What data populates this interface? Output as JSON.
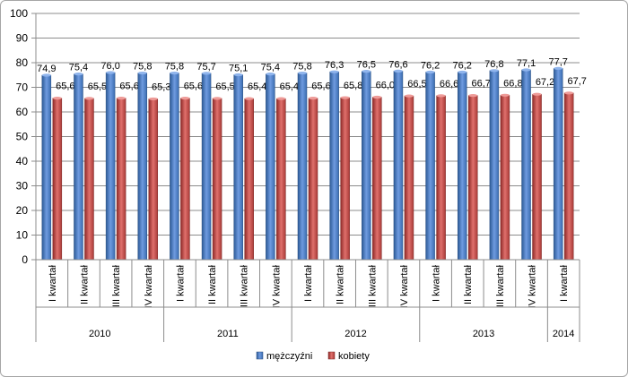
{
  "chart_data": {
    "type": "bar",
    "title": "",
    "xlabel": "",
    "ylabel": "",
    "ylim": [
      0,
      100
    ],
    "yticks": [
      0,
      10,
      20,
      30,
      40,
      50,
      60,
      70,
      80,
      90,
      100
    ],
    "grid": true,
    "legend_position": "bottom",
    "categories": [
      "I kwartał",
      "II kwartał",
      "III kwartał",
      "IV kwartał",
      "I kwartał",
      "II kwartał",
      "III kwartał",
      "IV kwartał",
      "I kwartał",
      "II kwartał",
      "III kwartał",
      "IV kwartał",
      "I kwartał",
      "II kwartał",
      "III kwartał",
      "IV kwartał",
      "I kwartał"
    ],
    "groups": [
      {
        "label": "2010",
        "count": 4
      },
      {
        "label": "2011",
        "count": 4
      },
      {
        "label": "2012",
        "count": 4
      },
      {
        "label": "2013",
        "count": 4
      },
      {
        "label": "2014",
        "count": 1
      }
    ],
    "series": [
      {
        "name": "mężczyźni",
        "color": "#4f81bd",
        "values": [
          74.9,
          75.4,
          76.0,
          75.8,
          75.8,
          75.7,
          75.1,
          75.4,
          75.8,
          76.3,
          76.5,
          76.6,
          76.2,
          76.2,
          76.8,
          77.1,
          77.7
        ],
        "labels": [
          "74,9",
          "75,4",
          "76,0",
          "75,8",
          "75,8",
          "75,7",
          "75,1",
          "75,4",
          "75,8",
          "76,3",
          "76,5",
          "76,6",
          "76,2",
          "76,2",
          "76,8",
          "77,1",
          "77,7"
        ]
      },
      {
        "name": "kobiety",
        "color": "#c0504d",
        "values": [
          65.6,
          65.5,
          65.6,
          65.3,
          65.6,
          65.5,
          65.4,
          65.4,
          65.6,
          65.8,
          66.0,
          66.5,
          66.6,
          66.7,
          66.8,
          67.2,
          67.7
        ],
        "labels": [
          "65,6",
          "65,5",
          "65,6",
          "65,3",
          "65,6",
          "65,5",
          "65,4",
          "65,4",
          "65,6",
          "65,8",
          "66,0",
          "66,5",
          "66,6",
          "66,7",
          "66,8",
          "67,2",
          "67,7"
        ]
      }
    ]
  }
}
